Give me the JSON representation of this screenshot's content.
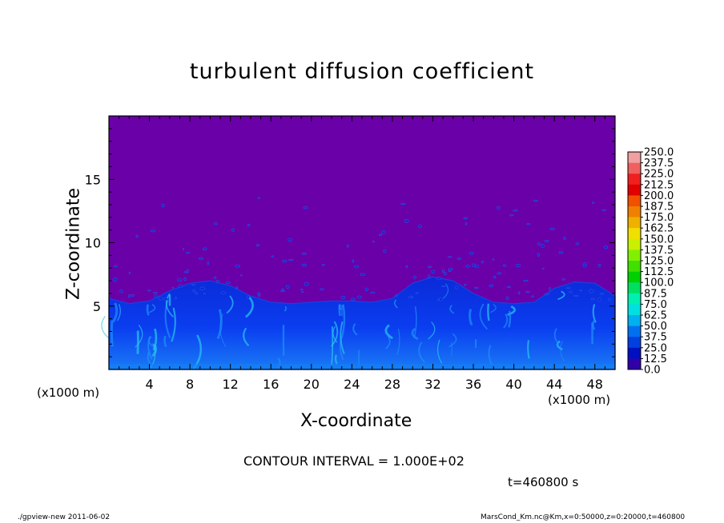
{
  "chart_data": {
    "type": "heatmap",
    "title": "turbulent diffusion coefficient",
    "xlabel": "X-coordinate",
    "ylabel": "Z-coordinate",
    "x_unit": "(x1000 m)",
    "xlim": [
      0,
      50
    ],
    "ylim": [
      0,
      20
    ],
    "x_ticks": [
      4,
      8,
      12,
      16,
      20,
      24,
      28,
      32,
      36,
      40,
      44,
      48
    ],
    "y_ticks": [
      5,
      10,
      15
    ],
    "colorbar": {
      "labels": [
        "250.0",
        "237.5",
        "225.0",
        "212.5",
        "200.0",
        "187.5",
        "175.0",
        "162.5",
        "150.0",
        "137.5",
        "125.0",
        "112.5",
        "100.0",
        "87.5",
        "75.0",
        "62.5",
        "50.0",
        "37.5",
        "25.0",
        "12.5",
        "0.0"
      ],
      "colors": [
        "#f0a0a0",
        "#f06060",
        "#f02020",
        "#e00000",
        "#f05000",
        "#f08000",
        "#f0b000",
        "#f0e000",
        "#c8f000",
        "#80f000",
        "#40e000",
        "#00d000",
        "#00e060",
        "#00f0b0",
        "#00e0e0",
        "#00b0f0",
        "#0070f0",
        "#0040e0",
        "#0010c0",
        "#3000a8"
      ]
    },
    "background_value_color": "#6a00a8",
    "boundary_layer_top": [
      5.6,
      5.2,
      5.4,
      6.2,
      6.8,
      7.0,
      6.6,
      5.8,
      5.3,
      5.2,
      5.3,
      5.4,
      5.4,
      5.3,
      5.6,
      6.8,
      7.3,
      7.0,
      6.0,
      5.3,
      5.2,
      5.3,
      6.4,
      6.9,
      6.8,
      5.8
    ],
    "boundary_layer_x": [
      0,
      2,
      4,
      6,
      8,
      10,
      12,
      14,
      16,
      18,
      20,
      22,
      24,
      26,
      28,
      30,
      32,
      34,
      36,
      38,
      40,
      42,
      44,
      46,
      48,
      50
    ],
    "contour_interval": "CONTOUR INTERVAL = 1.000E+02",
    "time": "t=460800 s"
  },
  "footer": {
    "left": "./gpview-new   2011-06-02",
    "right": "MarsCond_Km.nc@Km,x=0:50000,z=0:20000,t=460800"
  }
}
